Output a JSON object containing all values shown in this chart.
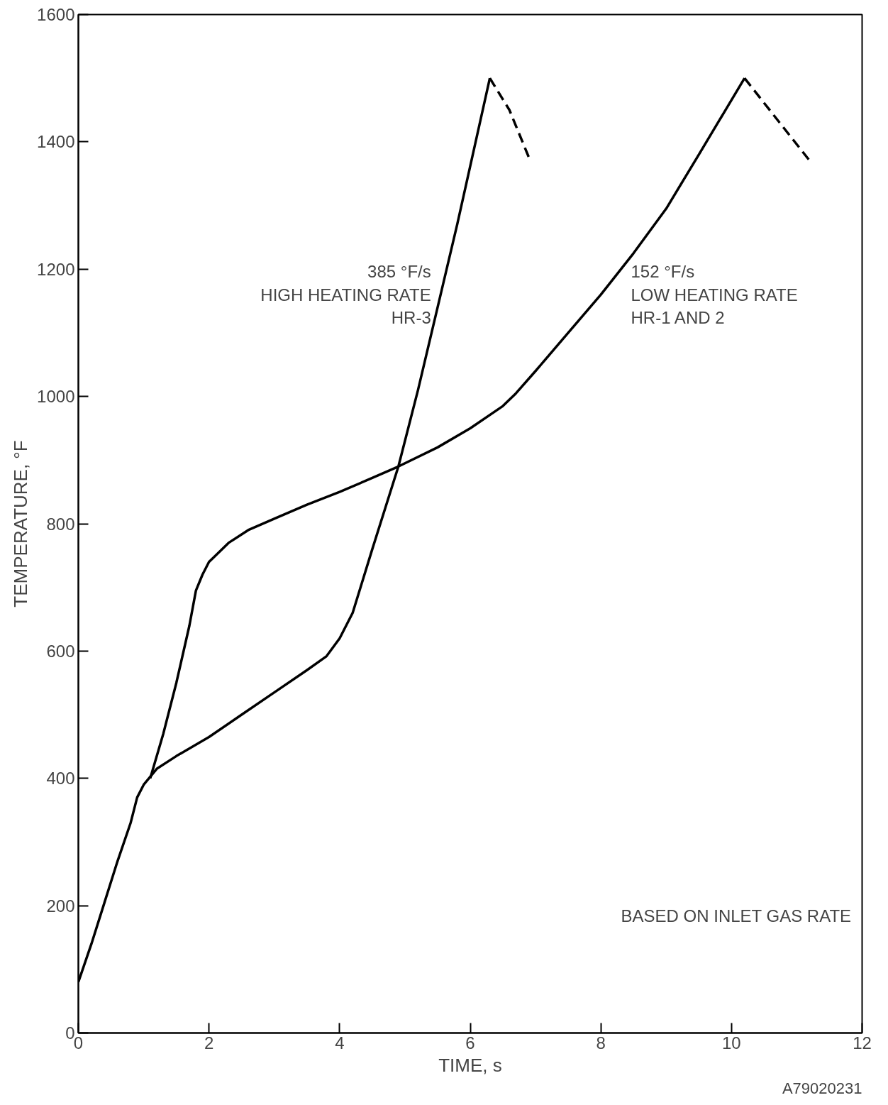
{
  "chart_data": {
    "type": "line",
    "xlabel": "TIME, s",
    "ylabel": "TEMPERATURE, °F",
    "xlim": [
      0,
      12
    ],
    "ylim": [
      0,
      1600
    ],
    "xticks": [
      0,
      2,
      4,
      6,
      8,
      10,
      12
    ],
    "yticks": [
      0,
      200,
      400,
      600,
      800,
      1000,
      1200,
      1400,
      1600
    ],
    "marker": "none",
    "series": [
      {
        "color": "#000000",
        "line_style": "solid",
        "x": [
          0,
          0.2,
          0.4,
          0.6,
          0.8,
          0.9,
          1.0,
          1.2,
          1.5,
          2.0,
          2.5,
          3.0,
          3.5,
          3.8,
          4.0,
          4.2,
          4.5,
          4.9,
          5.2,
          5.5,
          5.8,
          6.3
        ],
        "values": [
          80,
          140,
          205,
          270,
          330,
          370,
          390,
          415,
          435,
          465,
          500,
          535,
          570,
          592,
          620,
          660,
          760,
          890,
          1010,
          1140,
          1270,
          1500
        ]
      },
      {
        "color": "#000000",
        "line_style": "dashed",
        "x": [
          6.3,
          6.6,
          6.9
        ],
        "values": [
          1500,
          1450,
          1375
        ]
      },
      {
        "color": "#000000",
        "line_style": "solid",
        "x": [
          1.1,
          1.3,
          1.5,
          1.7,
          1.8,
          1.9,
          2.0,
          2.3,
          2.6,
          3.0,
          3.5,
          4.0,
          4.5,
          4.9,
          5.5,
          6.0,
          6.5,
          6.7,
          7.0,
          7.5,
          8.0,
          8.5,
          9.0,
          9.5,
          10.2
        ],
        "values": [
          400,
          470,
          550,
          640,
          695,
          720,
          740,
          770,
          790,
          808,
          830,
          850,
          872,
          890,
          920,
          950,
          985,
          1005,
          1040,
          1100,
          1160,
          1225,
          1295,
          1380,
          1500
        ]
      },
      {
        "color": "#000000",
        "line_style": "dashed",
        "x": [
          10.2,
          10.7,
          11.2
        ],
        "values": [
          1500,
          1435,
          1370
        ]
      }
    ],
    "annotations": [
      "385 °F/s\nHIGH HEATING RATE\nHR-3",
      "152 °F/s\nLOW HEATING RATE\nHR-1 AND 2",
      "BASED ON INLET GAS RATE",
      "A79020231"
    ]
  }
}
